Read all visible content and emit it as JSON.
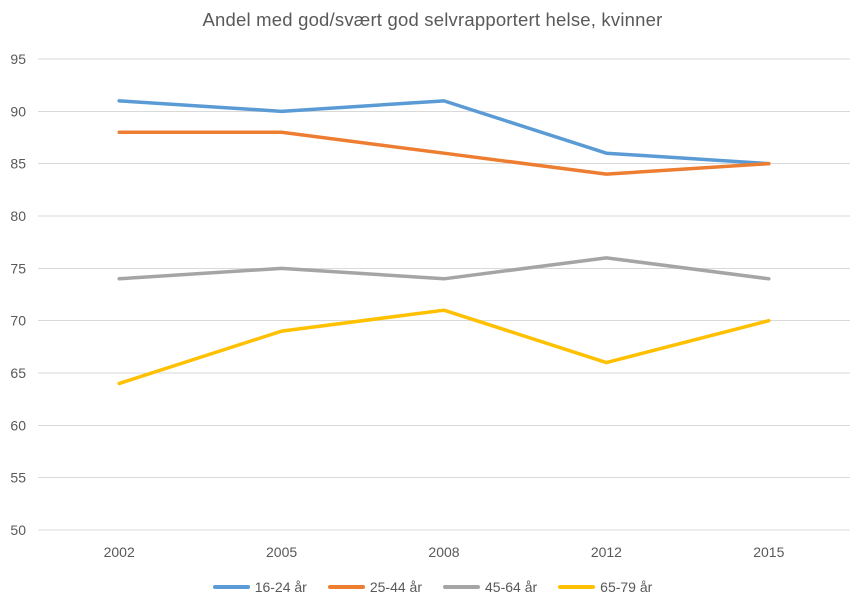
{
  "colors": {
    "text": "#595959",
    "gridline": "#D9D9D9",
    "background": "#FFFFFF",
    "series_blue": "#5B9BD5",
    "series_orange": "#ED7D31",
    "series_gray": "#A5A5A5",
    "series_yellow": "#FFC000"
  },
  "chart_data": {
    "type": "line",
    "title": "Andel med god/svært god selvrapportert helse, kvinner",
    "categories": [
      "2002",
      "2005",
      "2008",
      "2012",
      "2015"
    ],
    "series": [
      {
        "name": "16-24 år",
        "color": "#5B9BD5",
        "values": [
          91,
          90,
          91,
          86,
          85
        ]
      },
      {
        "name": "25-44 år",
        "color": "#ED7D31",
        "values": [
          88,
          88,
          86,
          84,
          85
        ]
      },
      {
        "name": "45-64 år",
        "color": "#A5A5A5",
        "values": [
          74,
          75,
          74,
          76,
          74
        ]
      },
      {
        "name": "65-79 år",
        "color": "#FFC000",
        "values": [
          64,
          69,
          71,
          66,
          70
        ]
      }
    ],
    "ylim": [
      50,
      95
    ],
    "yticks": [
      50,
      55,
      60,
      65,
      70,
      75,
      80,
      85,
      90,
      95
    ],
    "ytick_step": 5,
    "xlabel": "",
    "ylabel": "",
    "grid": true,
    "legend_position": "bottom"
  }
}
